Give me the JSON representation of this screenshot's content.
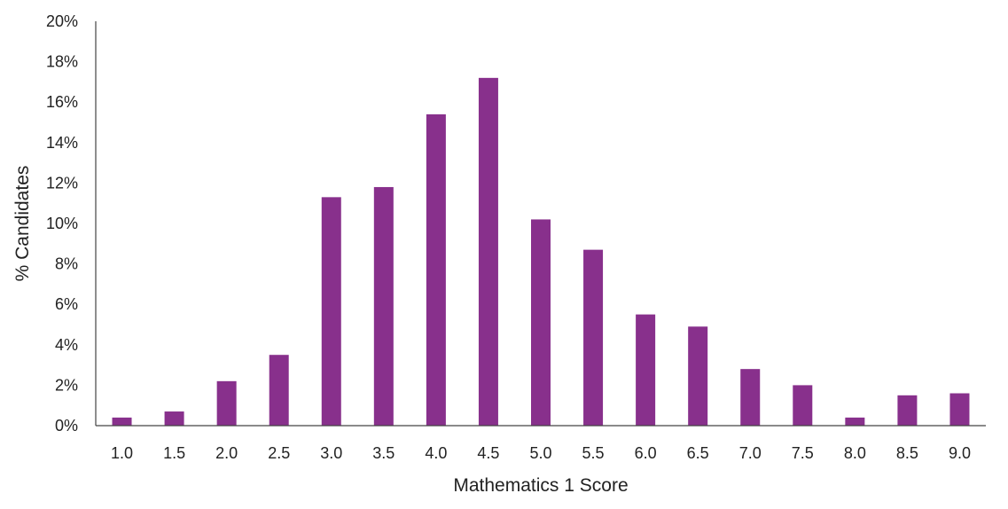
{
  "chart_data": {
    "type": "bar",
    "title": "",
    "xlabel": "Mathematics 1 Score",
    "ylabel": "% Candidates",
    "categories": [
      "1.0",
      "1.5",
      "2.0",
      "2.5",
      "3.0",
      "3.5",
      "4.0",
      "4.5",
      "5.0",
      "5.5",
      "6.0",
      "6.5",
      "7.0",
      "7.5",
      "8.0",
      "8.5",
      "9.0"
    ],
    "values": [
      0.4,
      0.7,
      2.2,
      3.5,
      11.3,
      11.8,
      15.4,
      17.2,
      10.2,
      8.7,
      5.5,
      4.9,
      2.8,
      2.0,
      0.4,
      1.5,
      1.6
    ],
    "value_unit": "%",
    "ylim": [
      0,
      20
    ],
    "yticks": [
      0,
      2,
      4,
      6,
      8,
      10,
      12,
      14,
      16,
      18,
      20
    ],
    "ytick_labels": [
      "0%",
      "2%",
      "4%",
      "6%",
      "8%",
      "10%",
      "12%",
      "14%",
      "16%",
      "18%",
      "20%"
    ],
    "grid": false,
    "legend": "none",
    "bar_color": "#88308c"
  }
}
